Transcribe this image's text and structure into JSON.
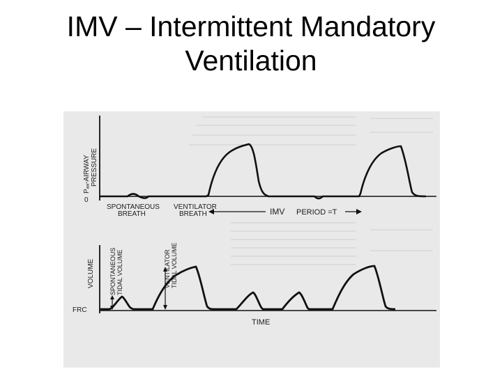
{
  "slide": {
    "title_line1": "IMV – Intermittent Mandatory",
    "title_line2": "Ventilation"
  },
  "figure": {
    "pressure_axis_line1": "Pₐₐ-AIRWAY",
    "pressure_axis_line2": "PRESSURE",
    "pressure_zero": "0",
    "spontaneous_breath_line1": "SPONTANEOUS",
    "spontaneous_breath_line2": "BREATH",
    "ventilator_breath_line1": "VENTILATOR",
    "ventilator_breath_line2": "BREATH",
    "imv_label": "IMV",
    "period_label": "PERIOD =T",
    "volume_axis": "VOLUME",
    "spont_tidal_line1": "SPONTANEOUS",
    "spont_tidal_line2": "TIDAL VOLUME",
    "vent_tidal_line1": "VENTILATOR",
    "vent_tidal_line2": "TIDAL VOLUME",
    "frc_label": "FRC",
    "time_label": "TIME"
  },
  "colors": {
    "figure_background": "#e9e9e9",
    "trace": "#111111"
  }
}
